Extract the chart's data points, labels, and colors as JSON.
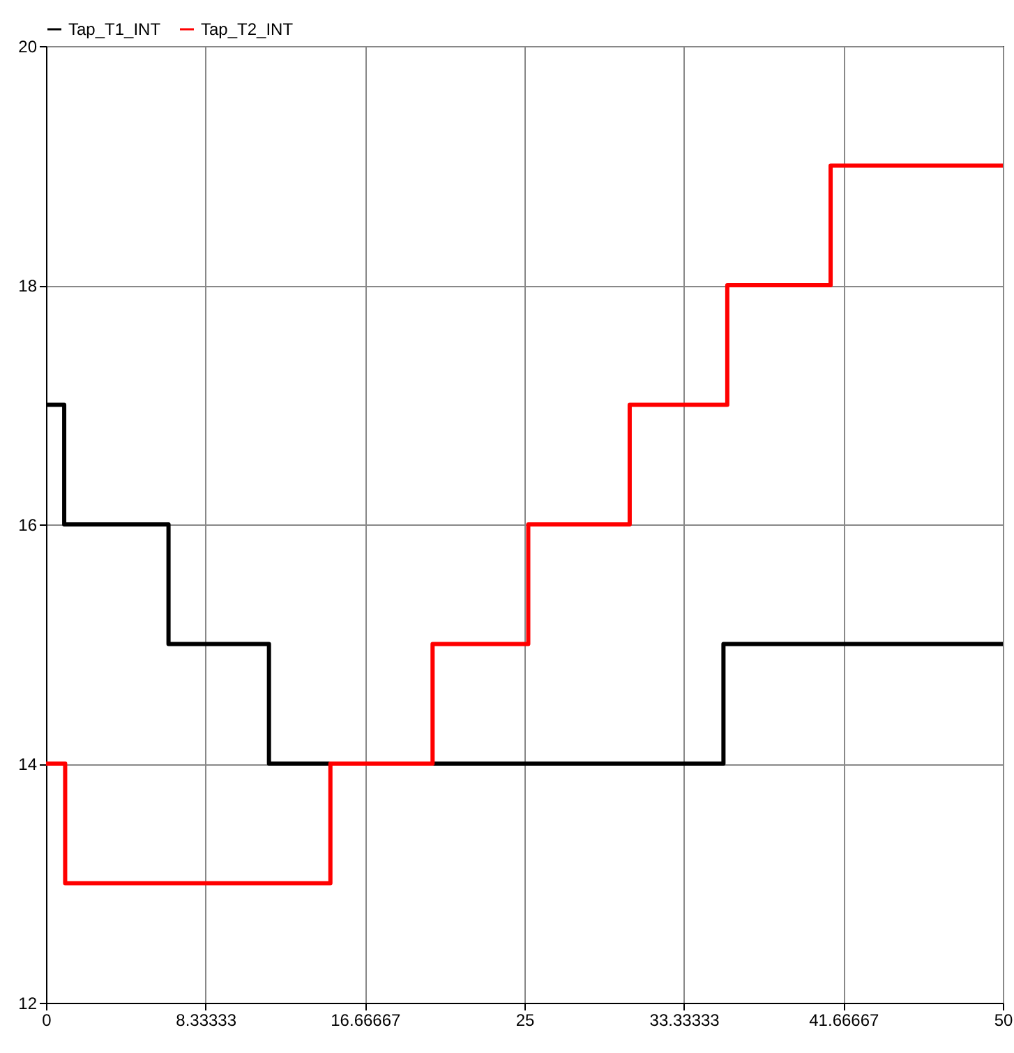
{
  "chart_data": {
    "type": "step",
    "xlim": [
      0,
      50
    ],
    "xticks": [
      0,
      8.33333,
      16.66667,
      25,
      33.33333,
      41.66667,
      50
    ],
    "ylim": [
      12,
      20
    ],
    "yticks": [
      12,
      14,
      16,
      18,
      20
    ],
    "grid": true,
    "legend": "top",
    "line_style": "solid",
    "series": [
      {
        "name": "Tap_T1_INT",
        "color": "#000000",
        "x": [
          0,
          0.95,
          6.4,
          11.65,
          35.4,
          50
        ],
        "values": [
          17,
          16,
          15,
          14,
          15,
          15
        ]
      },
      {
        "name": "Tap_T2_INT",
        "color": "#ff0000",
        "x": [
          0,
          1,
          14.86,
          20.2,
          25.2,
          30.5,
          35.6,
          41.0,
          50
        ],
        "values": [
          14,
          13,
          14,
          15,
          16,
          17,
          18,
          19,
          19
        ]
      }
    ]
  }
}
